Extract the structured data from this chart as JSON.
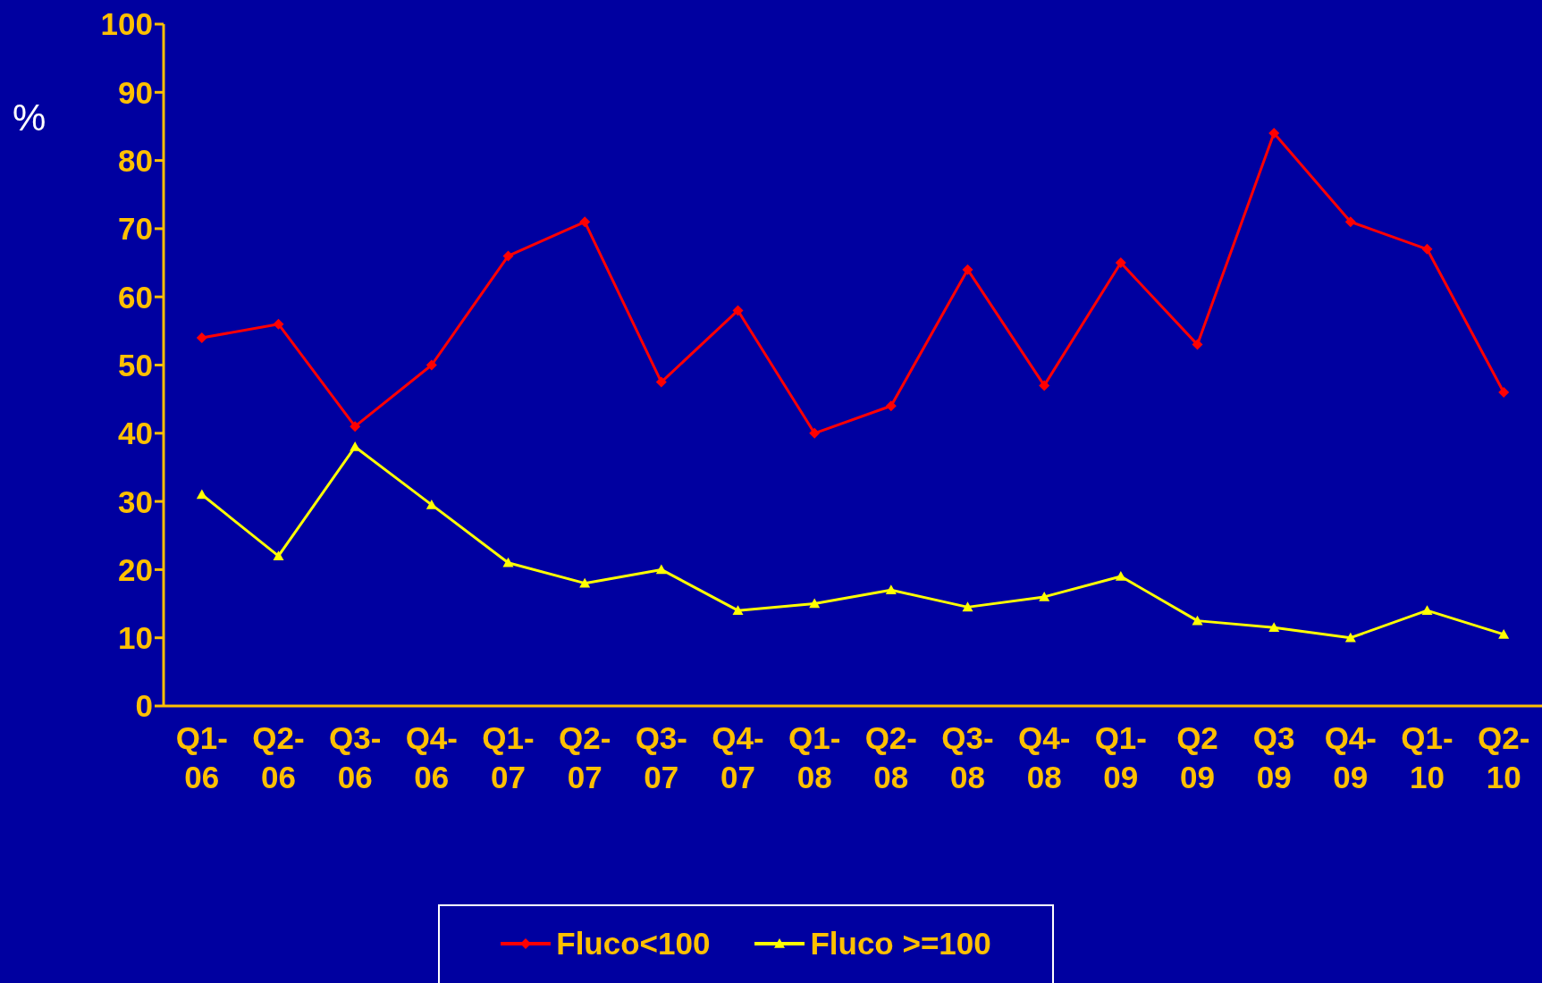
{
  "chart_data": {
    "type": "line",
    "ylabel": "%",
    "categories": [
      "Q1-06",
      "Q2-06",
      "Q3-06",
      "Q4-06",
      "Q1-07",
      "Q2-07",
      "Q3-07",
      "Q4-07",
      "Q1-08",
      "Q2-08",
      "Q3-08",
      "Q4-08",
      "Q1-09",
      "Q2 09",
      "Q3 09",
      "Q4-09",
      "Q1-10",
      "Q2-10"
    ],
    "series": [
      {
        "name": "Fluco<100",
        "color": "#ff0000",
        "marker": "diamond",
        "values": [
          54,
          56,
          41,
          50,
          66,
          71,
          47.5,
          58,
          40,
          44,
          64,
          47,
          65,
          53,
          84,
          71,
          67,
          46
        ]
      },
      {
        "name": "Fluco >=100",
        "color": "#ffff00",
        "marker": "triangle",
        "values": [
          31,
          22,
          38,
          29.5,
          21,
          18,
          20,
          14,
          15,
          17,
          14.5,
          16,
          19,
          12.5,
          11.5,
          10,
          14,
          10.5
        ]
      }
    ],
    "ylim": [
      0,
      100
    ],
    "yticks": [
      0,
      10,
      20,
      30,
      40,
      50,
      60,
      70,
      80,
      90,
      100
    ],
    "grid": false,
    "legend": "bottom",
    "line_style": "solid"
  }
}
